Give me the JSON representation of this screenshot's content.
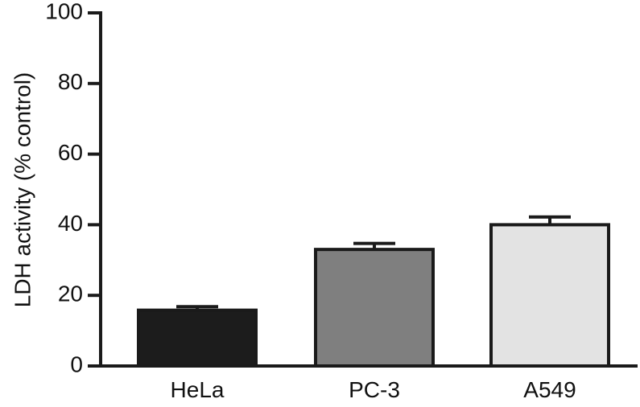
{
  "chart_data": {
    "type": "bar",
    "title": "",
    "xlabel": "",
    "ylabel": "LDH activity (% control)",
    "ylim": [
      0,
      100
    ],
    "yticks": [
      0,
      20,
      40,
      60,
      80,
      100
    ],
    "yticks_labels": [
      "0",
      "20",
      "40",
      "60",
      "80",
      "100"
    ],
    "grid": false,
    "legend": "none",
    "categories": [
      "HeLa",
      "PC-3",
      "A549"
    ],
    "values": [
      15.8,
      33.0,
      40.0
    ],
    "errors": [
      1.0,
      1.7,
      2.2
    ],
    "colors": [
      "#1c1c1c",
      "#7f7f7f",
      "#e3e3e3"
    ],
    "edge_color": "#1a1a1a"
  }
}
